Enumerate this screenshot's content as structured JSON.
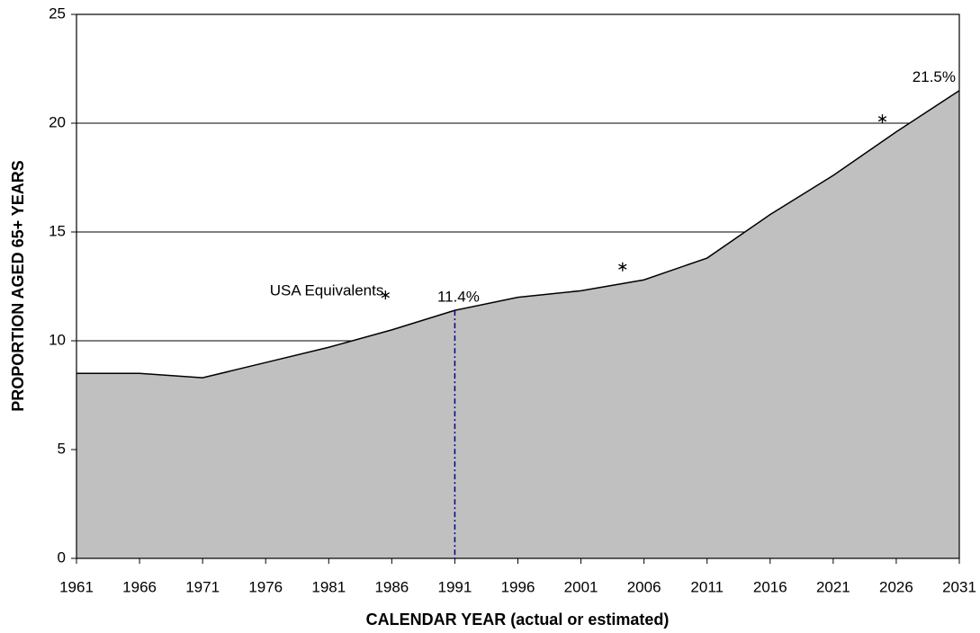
{
  "chart_data": {
    "type": "area",
    "y_label": "PROPORTION AGED 65+ YEARS",
    "x_label": "CALENDAR YEAR (actual or estimated)",
    "categories": [
      "1961",
      "1966",
      "1971",
      "1976",
      "1981",
      "1986",
      "1991",
      "1996",
      "2001",
      "2006",
      "2011",
      "2016",
      "2021",
      "2026",
      "2031"
    ],
    "values": [
      8.5,
      8.5,
      8.3,
      9.0,
      9.7,
      10.5,
      11.4,
      12.0,
      12.3,
      12.8,
      13.8,
      15.8,
      17.6,
      19.6,
      21.5
    ],
    "value_labels": [
      null,
      null,
      null,
      null,
      null,
      null,
      "11.4%",
      null,
      null,
      null,
      null,
      null,
      null,
      null,
      "21.5%"
    ],
    "color": "#c0c0c0",
    "ylim": [
      0,
      25
    ],
    "yticks": [
      0,
      5,
      10,
      15,
      20,
      25
    ],
    "grid": true,
    "reference_line_color": "#00008b",
    "usa_points": {
      "annotation": "USA Equivalents",
      "x": [
        1985.5,
        2004.3,
        2024.9
      ],
      "values": [
        12.1,
        13.4,
        20.2
      ]
    }
  }
}
